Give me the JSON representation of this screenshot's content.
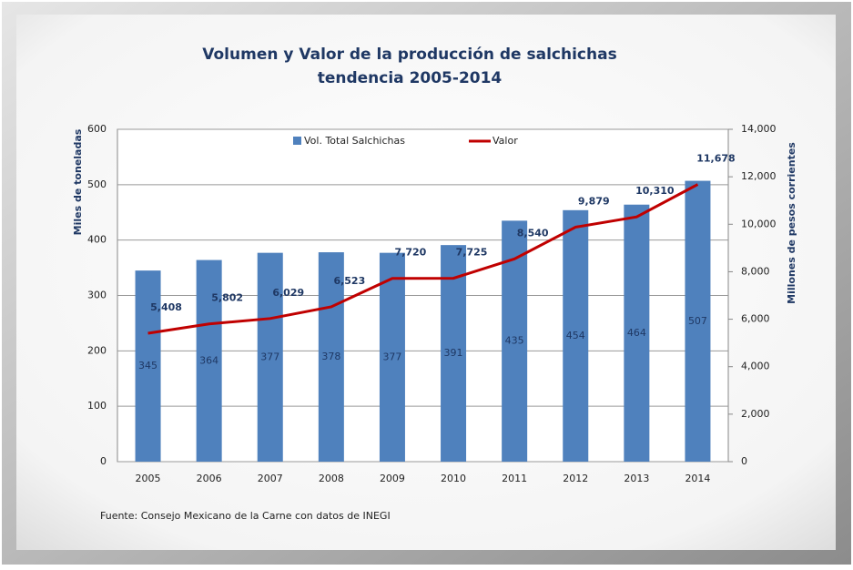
{
  "chart_data": {
    "type": "bar_line",
    "title": "Volumen y Valor de la producción de salchichas",
    "subtitle": "tendencia 2005-2014",
    "y_label": "Miles de toneladas",
    "y2_label": "Millones de pesos corrientes",
    "source": "Fuente: Consejo Mexicano de la Carne con datos de INEGI",
    "categories": [
      "2005",
      "2006",
      "2007",
      "2008",
      "2009",
      "2010",
      "2011",
      "2012",
      "2013",
      "2014"
    ],
    "series": [
      {
        "name": "Vol. Total Salchichas",
        "type": "bar",
        "color": "#4f81bd",
        "values": [
          345,
          364,
          377,
          378,
          377,
          391,
          435,
          454,
          464,
          507
        ]
      },
      {
        "name": "Valor",
        "type": "line",
        "axis": "y2",
        "color": "#c00000",
        "values": [
          5408,
          5802,
          6029,
          6523,
          7720,
          7725,
          8540,
          9879,
          10310,
          11678
        ],
        "value_labels": [
          "5,408",
          "5,802",
          "6,029",
          "6,523",
          "7,720",
          "7,725",
          "8,540",
          "9,879",
          "10,310",
          "11,678"
        ]
      }
    ],
    "ylim": [
      0,
      600
    ],
    "yticks": [
      0,
      100,
      200,
      300,
      400,
      500,
      600
    ],
    "y2lim": [
      0,
      14000
    ],
    "y2ticks": [
      0,
      {
        "value": 2000,
        "label": "2,000"
      },
      {
        "value": 4000,
        "label": "4,000"
      },
      {
        "value": 6000,
        "label": "6,000"
      },
      {
        "value": 8000,
        "label": "8,000"
      },
      {
        "value": 10000,
        "label": "10,000"
      },
      {
        "value": 12000,
        "label": "12,000"
      },
      {
        "value": 14000,
        "label": "14,000"
      }
    ],
    "grid": true,
    "legend": "top"
  }
}
